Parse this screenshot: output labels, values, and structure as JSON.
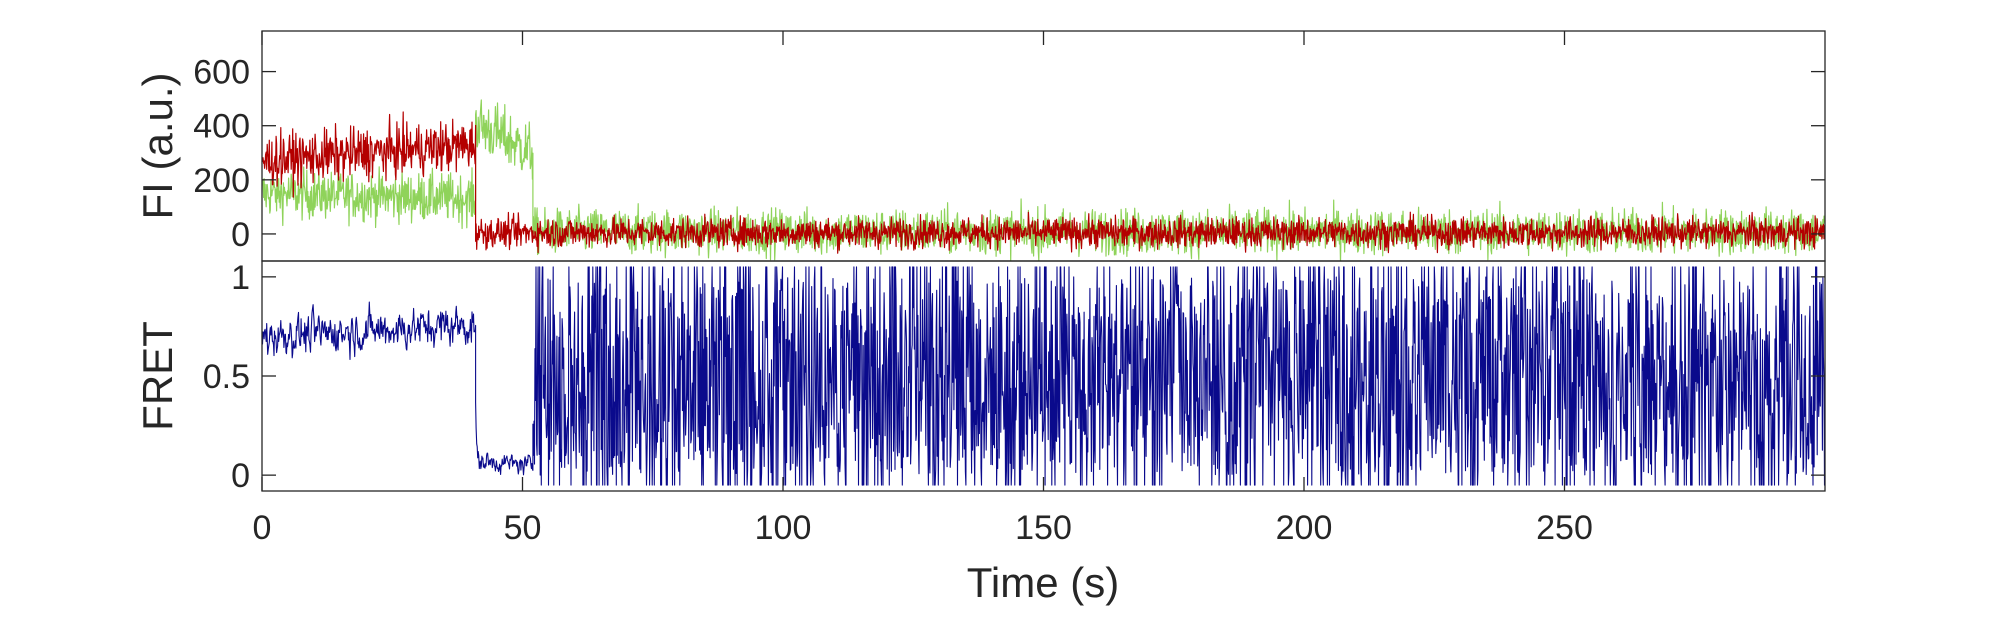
{
  "chart_data": [
    {
      "type": "line",
      "ylabel": "FI (a.u.)",
      "xlim": [
        0,
        300
      ],
      "ylim": [
        -100,
        750
      ],
      "yticks": [
        0,
        200,
        400,
        600
      ],
      "grid": false,
      "series": [
        {
          "color": "#8fd35a",
          "segments": [
            {
              "x": [
                0,
                41
              ],
              "mean": [
                150,
                130
              ],
              "noise": 45
            },
            {
              "x": [
                41,
                52
              ],
              "mean": [
                410,
                300
              ],
              "noise": 55
            },
            {
              "x": [
                52,
                300
              ],
              "mean": [
                8,
                8
              ],
              "noise": 42
            }
          ]
        },
        {
          "color": "#b40000",
          "segments": [
            {
              "x": [
                0,
                41
              ],
              "mean": [
                270,
                330
              ],
              "noise": 48
            },
            {
              "x": [
                41,
                300
              ],
              "mean": [
                5,
                5
              ],
              "noise": 28
            }
          ]
        }
      ]
    },
    {
      "type": "line",
      "ylabel": "FRET",
      "xlabel": "Time (s)",
      "xlim": [
        0,
        300
      ],
      "ylim": [
        -0.08,
        1.08
      ],
      "xticks": [
        0,
        50,
        100,
        150,
        200,
        250
      ],
      "yticks": [
        0,
        0.5,
        1
      ],
      "ytick_labels": [
        "0",
        "0.5",
        "1"
      ],
      "grid": false,
      "series": [
        {
          "color": "#0a0a8c",
          "segments": [
            {
              "x": [
                0,
                41
              ],
              "mean": [
                0.7,
                0.76
              ],
              "noise": 0.08,
              "mode": "smooth"
            },
            {
              "x": [
                41,
                52
              ],
              "mean": [
                0.07,
                0.05
              ],
              "noise": 0.04,
              "mode": "smooth"
            },
            {
              "x": [
                52,
                300
              ],
              "mean": [
                0.5,
                0.5
              ],
              "noise": 0.5,
              "mode": "random"
            }
          ]
        }
      ]
    }
  ]
}
